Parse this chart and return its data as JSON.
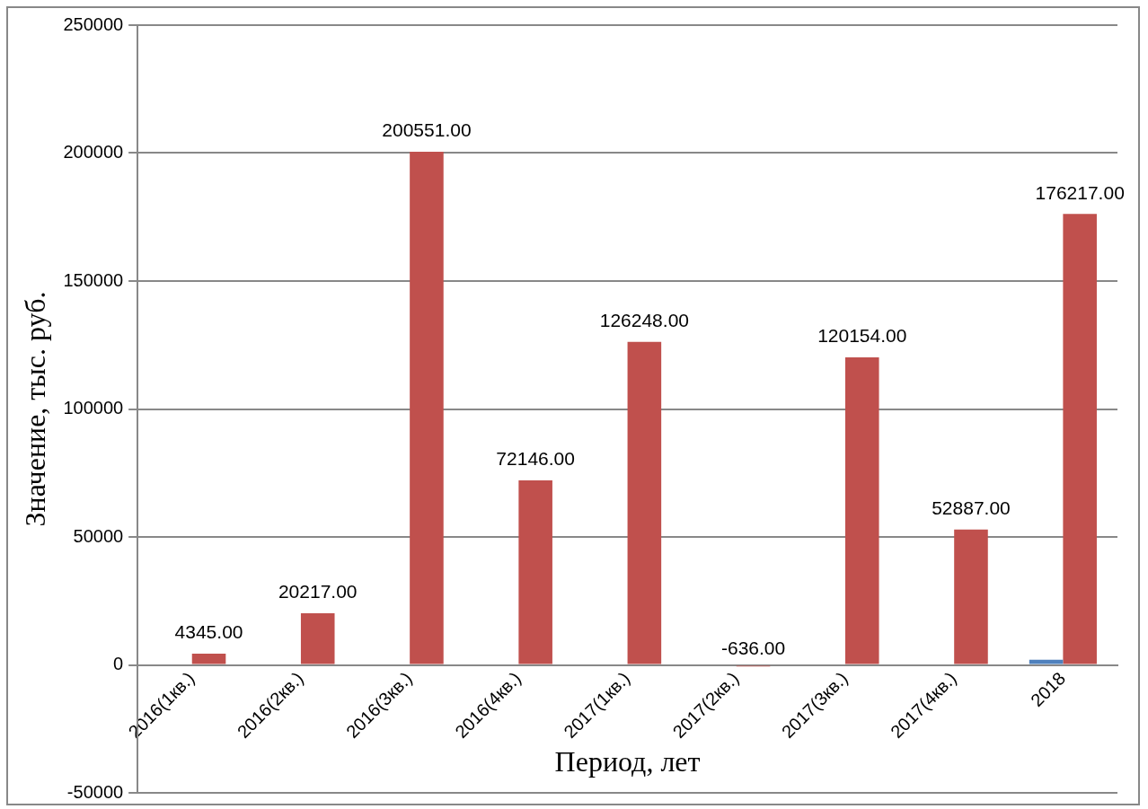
{
  "chart_data": {
    "type": "bar",
    "xlabel": "Период, лет",
    "ylabel": "Значение, тыс. руб.",
    "categories": [
      "2016(1кв.)",
      "2016(2кв.)",
      "2016(3кв.)",
      "2016(4кв.)",
      "2017(1кв.)",
      "2017(2кв.)",
      "2017(3кв.)",
      "2017(4кв.)",
      "2018"
    ],
    "series": [
      {
        "color": "#4f81bd",
        "values": [
          null,
          null,
          null,
          null,
          null,
          null,
          null,
          null,
          2000
        ]
      },
      {
        "color": "#c0504d",
        "values": [
          4345,
          20217,
          200551,
          72146,
          126248,
          -636,
          120154,
          52887,
          176217
        ],
        "value_labels": [
          "4345.00",
          "20217.00",
          "200551.00",
          "72146.00",
          "126248.00",
          "-636.00",
          "120154.00",
          "52887.00",
          "176217.00"
        ]
      }
    ],
    "ylim": [
      -50000,
      250000
    ],
    "yticks": [
      -50000,
      0,
      50000,
      100000,
      150000,
      200000,
      250000
    ],
    "grid": "y",
    "legend": false
  }
}
